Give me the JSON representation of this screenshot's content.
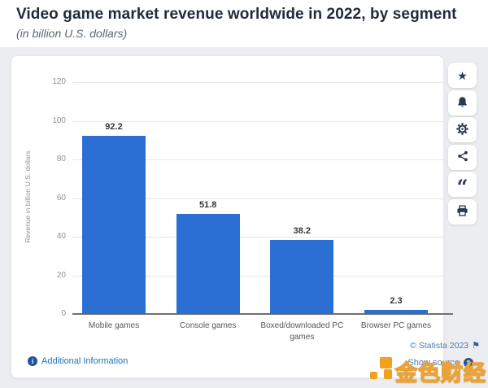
{
  "header": {
    "title": "Video game market revenue worldwide in 2022, by segment",
    "subtitle": "(in billion U.S. dollars)"
  },
  "chart_data": {
    "type": "bar",
    "categories": [
      "Mobile games",
      "Console games",
      "Boxed/downloaded PC games",
      "Browser PC games"
    ],
    "values": [
      92.2,
      51.8,
      38.2,
      2.3
    ],
    "value_labels": [
      "92.2",
      "51.8",
      "38.2",
      "2.3"
    ],
    "title": "Video game market revenue worldwide in 2022, by segment",
    "xlabel": "",
    "ylabel": "Revenue in billion U.S. dollars",
    "ylim": [
      0,
      120
    ],
    "yticks": [
      0,
      20,
      40,
      60,
      80,
      100,
      120
    ],
    "grid": true,
    "legend": "none",
    "bar_color": "#2b6fd4"
  },
  "toolbar": {
    "icons": [
      "star-icon",
      "bell-icon",
      "gear-icon",
      "share-icon",
      "quote-icon",
      "print-icon"
    ]
  },
  "footer": {
    "additional_info_label": "Additional Information",
    "copyright": "© Statista 2023",
    "flag_glyph": "⚑",
    "show_source_label": "Show source",
    "info_glyph": "i",
    "question_glyph": "?"
  },
  "watermark": {
    "text": "金色财经"
  },
  "colors": {
    "bar": "#2b6fd4",
    "link_blue": "#1b74bc",
    "muted_link_blue": "#4e79a8",
    "icon_navy": "#2b3850",
    "watermark_orange": "#e8a33c",
    "page_gray": "#ecedf1"
  }
}
